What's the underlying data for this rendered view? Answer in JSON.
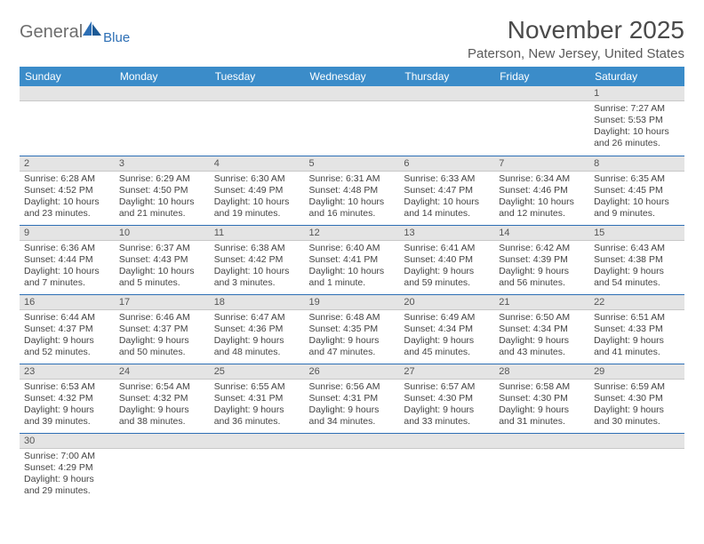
{
  "logo": {
    "text1": "General",
    "text2": "Blue"
  },
  "title": "November 2025",
  "location": "Paterson, New Jersey, United States",
  "colors": {
    "header_bg": "#3b8cc9",
    "header_text": "#ffffff",
    "daynum_bg": "#e4e4e4",
    "row_border": "#2d6fb5",
    "logo_gray": "#6d6d6d",
    "logo_blue": "#2d6fb5"
  },
  "day_headers": [
    "Sunday",
    "Monday",
    "Tuesday",
    "Wednesday",
    "Thursday",
    "Friday",
    "Saturday"
  ],
  "weeks": [
    [
      {
        "n": "",
        "sr": "",
        "ss": "",
        "dl": ""
      },
      {
        "n": "",
        "sr": "",
        "ss": "",
        "dl": ""
      },
      {
        "n": "",
        "sr": "",
        "ss": "",
        "dl": ""
      },
      {
        "n": "",
        "sr": "",
        "ss": "",
        "dl": ""
      },
      {
        "n": "",
        "sr": "",
        "ss": "",
        "dl": ""
      },
      {
        "n": "",
        "sr": "",
        "ss": "",
        "dl": ""
      },
      {
        "n": "1",
        "sr": "Sunrise: 7:27 AM",
        "ss": "Sunset: 5:53 PM",
        "dl": "Daylight: 10 hours and 26 minutes."
      }
    ],
    [
      {
        "n": "2",
        "sr": "Sunrise: 6:28 AM",
        "ss": "Sunset: 4:52 PM",
        "dl": "Daylight: 10 hours and 23 minutes."
      },
      {
        "n": "3",
        "sr": "Sunrise: 6:29 AM",
        "ss": "Sunset: 4:50 PM",
        "dl": "Daylight: 10 hours and 21 minutes."
      },
      {
        "n": "4",
        "sr": "Sunrise: 6:30 AM",
        "ss": "Sunset: 4:49 PM",
        "dl": "Daylight: 10 hours and 19 minutes."
      },
      {
        "n": "5",
        "sr": "Sunrise: 6:31 AM",
        "ss": "Sunset: 4:48 PM",
        "dl": "Daylight: 10 hours and 16 minutes."
      },
      {
        "n": "6",
        "sr": "Sunrise: 6:33 AM",
        "ss": "Sunset: 4:47 PM",
        "dl": "Daylight: 10 hours and 14 minutes."
      },
      {
        "n": "7",
        "sr": "Sunrise: 6:34 AM",
        "ss": "Sunset: 4:46 PM",
        "dl": "Daylight: 10 hours and 12 minutes."
      },
      {
        "n": "8",
        "sr": "Sunrise: 6:35 AM",
        "ss": "Sunset: 4:45 PM",
        "dl": "Daylight: 10 hours and 9 minutes."
      }
    ],
    [
      {
        "n": "9",
        "sr": "Sunrise: 6:36 AM",
        "ss": "Sunset: 4:44 PM",
        "dl": "Daylight: 10 hours and 7 minutes."
      },
      {
        "n": "10",
        "sr": "Sunrise: 6:37 AM",
        "ss": "Sunset: 4:43 PM",
        "dl": "Daylight: 10 hours and 5 minutes."
      },
      {
        "n": "11",
        "sr": "Sunrise: 6:38 AM",
        "ss": "Sunset: 4:42 PM",
        "dl": "Daylight: 10 hours and 3 minutes."
      },
      {
        "n": "12",
        "sr": "Sunrise: 6:40 AM",
        "ss": "Sunset: 4:41 PM",
        "dl": "Daylight: 10 hours and 1 minute."
      },
      {
        "n": "13",
        "sr": "Sunrise: 6:41 AM",
        "ss": "Sunset: 4:40 PM",
        "dl": "Daylight: 9 hours and 59 minutes."
      },
      {
        "n": "14",
        "sr": "Sunrise: 6:42 AM",
        "ss": "Sunset: 4:39 PM",
        "dl": "Daylight: 9 hours and 56 minutes."
      },
      {
        "n": "15",
        "sr": "Sunrise: 6:43 AM",
        "ss": "Sunset: 4:38 PM",
        "dl": "Daylight: 9 hours and 54 minutes."
      }
    ],
    [
      {
        "n": "16",
        "sr": "Sunrise: 6:44 AM",
        "ss": "Sunset: 4:37 PM",
        "dl": "Daylight: 9 hours and 52 minutes."
      },
      {
        "n": "17",
        "sr": "Sunrise: 6:46 AM",
        "ss": "Sunset: 4:37 PM",
        "dl": "Daylight: 9 hours and 50 minutes."
      },
      {
        "n": "18",
        "sr": "Sunrise: 6:47 AM",
        "ss": "Sunset: 4:36 PM",
        "dl": "Daylight: 9 hours and 48 minutes."
      },
      {
        "n": "19",
        "sr": "Sunrise: 6:48 AM",
        "ss": "Sunset: 4:35 PM",
        "dl": "Daylight: 9 hours and 47 minutes."
      },
      {
        "n": "20",
        "sr": "Sunrise: 6:49 AM",
        "ss": "Sunset: 4:34 PM",
        "dl": "Daylight: 9 hours and 45 minutes."
      },
      {
        "n": "21",
        "sr": "Sunrise: 6:50 AM",
        "ss": "Sunset: 4:34 PM",
        "dl": "Daylight: 9 hours and 43 minutes."
      },
      {
        "n": "22",
        "sr": "Sunrise: 6:51 AM",
        "ss": "Sunset: 4:33 PM",
        "dl": "Daylight: 9 hours and 41 minutes."
      }
    ],
    [
      {
        "n": "23",
        "sr": "Sunrise: 6:53 AM",
        "ss": "Sunset: 4:32 PM",
        "dl": "Daylight: 9 hours and 39 minutes."
      },
      {
        "n": "24",
        "sr": "Sunrise: 6:54 AM",
        "ss": "Sunset: 4:32 PM",
        "dl": "Daylight: 9 hours and 38 minutes."
      },
      {
        "n": "25",
        "sr": "Sunrise: 6:55 AM",
        "ss": "Sunset: 4:31 PM",
        "dl": "Daylight: 9 hours and 36 minutes."
      },
      {
        "n": "26",
        "sr": "Sunrise: 6:56 AM",
        "ss": "Sunset: 4:31 PM",
        "dl": "Daylight: 9 hours and 34 minutes."
      },
      {
        "n": "27",
        "sr": "Sunrise: 6:57 AM",
        "ss": "Sunset: 4:30 PM",
        "dl": "Daylight: 9 hours and 33 minutes."
      },
      {
        "n": "28",
        "sr": "Sunrise: 6:58 AM",
        "ss": "Sunset: 4:30 PM",
        "dl": "Daylight: 9 hours and 31 minutes."
      },
      {
        "n": "29",
        "sr": "Sunrise: 6:59 AM",
        "ss": "Sunset: 4:30 PM",
        "dl": "Daylight: 9 hours and 30 minutes."
      }
    ],
    [
      {
        "n": "30",
        "sr": "Sunrise: 7:00 AM",
        "ss": "Sunset: 4:29 PM",
        "dl": "Daylight: 9 hours and 29 minutes."
      },
      {
        "n": "",
        "sr": "",
        "ss": "",
        "dl": ""
      },
      {
        "n": "",
        "sr": "",
        "ss": "",
        "dl": ""
      },
      {
        "n": "",
        "sr": "",
        "ss": "",
        "dl": ""
      },
      {
        "n": "",
        "sr": "",
        "ss": "",
        "dl": ""
      },
      {
        "n": "",
        "sr": "",
        "ss": "",
        "dl": ""
      },
      {
        "n": "",
        "sr": "",
        "ss": "",
        "dl": ""
      }
    ]
  ]
}
